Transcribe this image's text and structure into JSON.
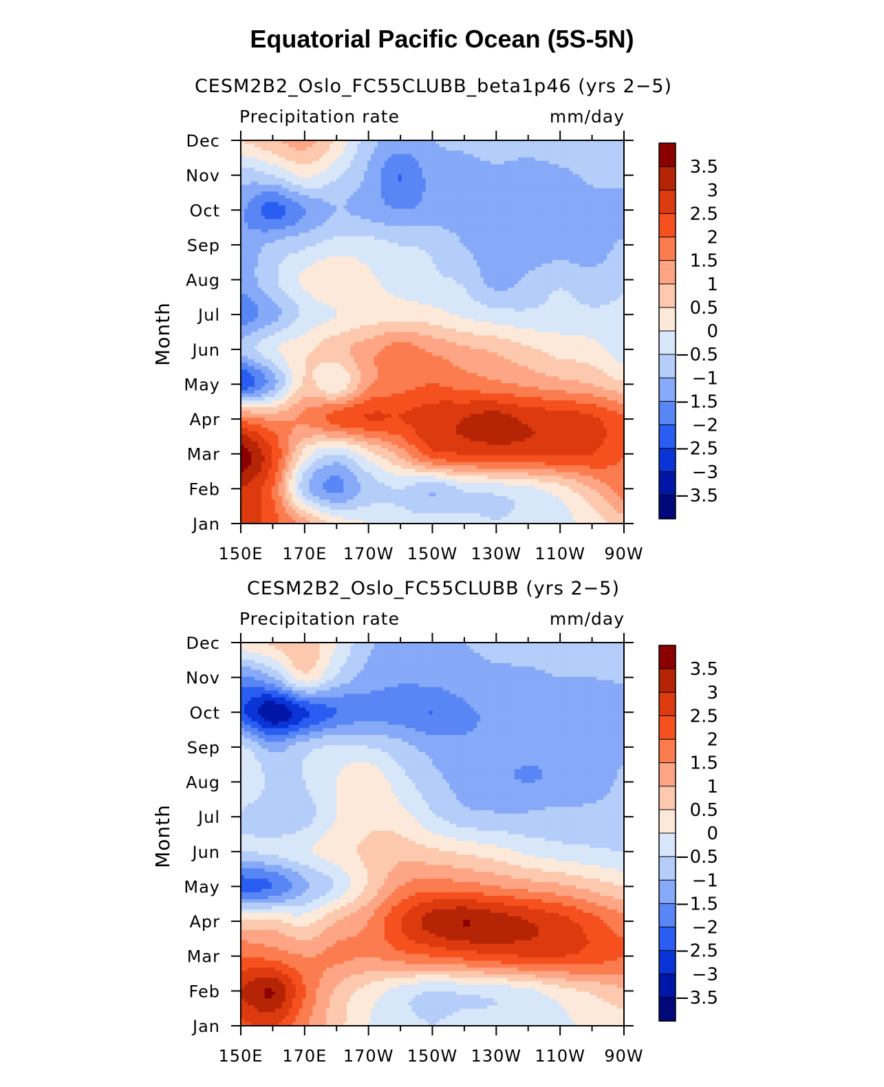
{
  "title": "Equatorial Pacific Ocean (5S-5N)",
  "colorbar": {
    "levels": [
      -3.5,
      -3,
      -2.5,
      -2,
      -1.5,
      -1,
      -0.5,
      0,
      0.5,
      1,
      1.5,
      2,
      2.5,
      3,
      3.5
    ],
    "labels": [
      "3.5",
      "3",
      "2.5",
      "2",
      "1.5",
      "1",
      "0.5",
      "0",
      "−0.5",
      "−1",
      "−1.5",
      "−2",
      "−2.5",
      "−3",
      "−3.5"
    ],
    "colors": [
      "#8b0000",
      "#b52404",
      "#dc3a0f",
      "#f5511e",
      "#fb7c4f",
      "#fda584",
      "#fcc9ae",
      "#fde9d9",
      "#d8e6fa",
      "#b4cdf9",
      "#86a9f8",
      "#5886f5",
      "#2a5df2",
      "#0a34d6",
      "#0016a6",
      "#00087a"
    ]
  },
  "chart_data": [
    {
      "type": "heatmap",
      "title": "CESM2B2_Oslo_FC55CLUBB_beta1p46 (yrs 2−5)",
      "left_label": "Precipitation rate",
      "right_label": "mm/day",
      "xlabel": "",
      "ylabel": "Month",
      "x_ticks": [
        "150E",
        "170E",
        "170W",
        "150W",
        "130W",
        "110W",
        "90W"
      ],
      "y_ticks": [
        "Jan",
        "Feb",
        "Mar",
        "Apr",
        "May",
        "Jun",
        "Jul",
        "Aug",
        "Sep",
        "Oct",
        "Nov",
        "Dec"
      ],
      "x": [
        150,
        160,
        170,
        180,
        190,
        200,
        210,
        220,
        230,
        240,
        250,
        260,
        270
      ],
      "grid": [
        [
          2.8,
          2.2,
          1.2,
          0.3,
          0.0,
          -0.3,
          -0.3,
          -0.4,
          -0.5,
          -0.4,
          -0.2,
          0.2,
          0.8
        ],
        [
          3.0,
          2.0,
          -0.8,
          -1.6,
          -0.8,
          -0.5,
          -0.9,
          -0.4,
          -0.3,
          -0.1,
          0.3,
          1.0,
          1.8
        ],
        [
          3.8,
          2.5,
          0.3,
          -0.5,
          0.3,
          1.2,
          2.3,
          2.5,
          2.6,
          2.6,
          2.6,
          2.5,
          2.0
        ],
        [
          1.8,
          1.4,
          1.6,
          2.2,
          2.5,
          2.5,
          2.8,
          3.0,
          3.2,
          2.9,
          2.8,
          2.6,
          2.1
        ],
        [
          -2.4,
          -1.2,
          0.6,
          0.1,
          1.4,
          1.8,
          2.0,
          1.8,
          1.6,
          1.4,
          1.2,
          1.0,
          0.6
        ],
        [
          -0.8,
          -0.1,
          0.4,
          0.8,
          1.3,
          1.7,
          1.4,
          1.1,
          0.9,
          0.6,
          0.3,
          0.2,
          -0.3
        ],
        [
          -1.8,
          -1.2,
          -0.4,
          0.0,
          0.2,
          0.3,
          0.2,
          -0.1,
          -0.3,
          -0.4,
          -0.3,
          -0.4,
          -0.4
        ],
        [
          -1.3,
          -0.6,
          0.1,
          0.5,
          0.1,
          -0.2,
          -0.4,
          -0.6,
          -1.2,
          -0.9,
          -0.6,
          -0.8,
          -0.6
        ],
        [
          -1.4,
          -0.9,
          -0.6,
          -0.3,
          -0.3,
          -0.5,
          -0.6,
          -1.0,
          -1.2,
          -1.3,
          -1.3,
          -1.3,
          -0.9
        ],
        [
          -1.4,
          -2.2,
          -1.5,
          -1.0,
          -1.2,
          -1.5,
          -1.3,
          -1.2,
          -1.2,
          -1.3,
          -1.3,
          -1.2,
          -1.4
        ],
        [
          -0.8,
          -0.5,
          0.1,
          -0.4,
          -1.1,
          -2.0,
          -1.3,
          -1.2,
          -1.1,
          -1.2,
          -1.1,
          -0.9,
          -0.7
        ],
        [
          0.5,
          0.9,
          1.2,
          0.4,
          -0.8,
          -1.2,
          -1.0,
          -0.9,
          -0.8,
          -0.8,
          -0.7,
          -0.6,
          -0.6
        ]
      ]
    },
    {
      "type": "heatmap",
      "title": "CESM2B2_Oslo_FC55CLUBB (yrs 2−5)",
      "left_label": "Precipitation rate",
      "right_label": "mm/day",
      "xlabel": "",
      "ylabel": "Month",
      "x_ticks": [
        "150E",
        "170E",
        "170W",
        "150W",
        "130W",
        "110W",
        "90W"
      ],
      "y_ticks": [
        "Jan",
        "Feb",
        "Mar",
        "Apr",
        "May",
        "Jun",
        "Jul",
        "Aug",
        "Sep",
        "Oct",
        "Nov",
        "Dec"
      ],
      "x": [
        150,
        160,
        170,
        180,
        190,
        200,
        210,
        220,
        230,
        240,
        250,
        260,
        270
      ],
      "grid": [
        [
          2.4,
          2.6,
          1.6,
          0.7,
          0.0,
          -0.3,
          -0.5,
          -0.3,
          -0.3,
          -0.2,
          -0.1,
          0.1,
          0.3
        ],
        [
          3.0,
          3.5,
          2.0,
          0.9,
          0.3,
          -0.2,
          -0.5,
          -0.4,
          -0.3,
          -0.1,
          0.3,
          0.6,
          0.9
        ],
        [
          2.0,
          1.8,
          1.5,
          1.6,
          1.5,
          1.8,
          2.0,
          2.2,
          2.4,
          2.5,
          2.5,
          2.3,
          2.0
        ],
        [
          0.6,
          0.6,
          0.3,
          1.0,
          1.5,
          2.5,
          3.2,
          3.5,
          3.3,
          3.0,
          2.7,
          2.2,
          1.7
        ],
        [
          -2.2,
          -2.0,
          -1.1,
          -0.4,
          0.6,
          1.5,
          1.8,
          1.7,
          1.5,
          1.3,
          1.1,
          0.8,
          0.5
        ],
        [
          -0.5,
          -0.4,
          -0.1,
          0.3,
          0.6,
          0.8,
          0.6,
          0.4,
          0.2,
          -0.1,
          -0.3,
          -0.4,
          -0.5
        ],
        [
          -0.6,
          -0.9,
          -0.7,
          0.0,
          0.4,
          0.2,
          -0.4,
          -0.8,
          -0.9,
          -0.9,
          -0.8,
          -0.8,
          -0.7
        ],
        [
          0.0,
          -0.6,
          -0.5,
          0.0,
          0.4,
          -0.3,
          -0.8,
          -1.2,
          -1.4,
          -1.5,
          -1.4,
          -1.3,
          -0.9
        ],
        [
          -0.4,
          -1.2,
          -0.7,
          -0.4,
          -0.5,
          -0.8,
          -1.2,
          -1.4,
          -1.4,
          -1.4,
          -1.4,
          -1.3,
          -1.1
        ],
        [
          -2.4,
          -3.4,
          -2.6,
          -2.0,
          -1.7,
          -1.8,
          -2.0,
          -1.6,
          -1.4,
          -1.3,
          -1.3,
          -1.4,
          -1.5
        ],
        [
          -1.6,
          -1.0,
          0.3,
          -0.6,
          -1.2,
          -1.4,
          -1.3,
          -1.2,
          -1.1,
          -1.1,
          -1.0,
          -1.0,
          -0.9
        ],
        [
          0.3,
          0.6,
          0.9,
          0.0,
          -0.9,
          -1.2,
          -1.1,
          -1.0,
          -0.9,
          -0.8,
          -0.7,
          -0.6,
          -0.6
        ]
      ]
    }
  ]
}
